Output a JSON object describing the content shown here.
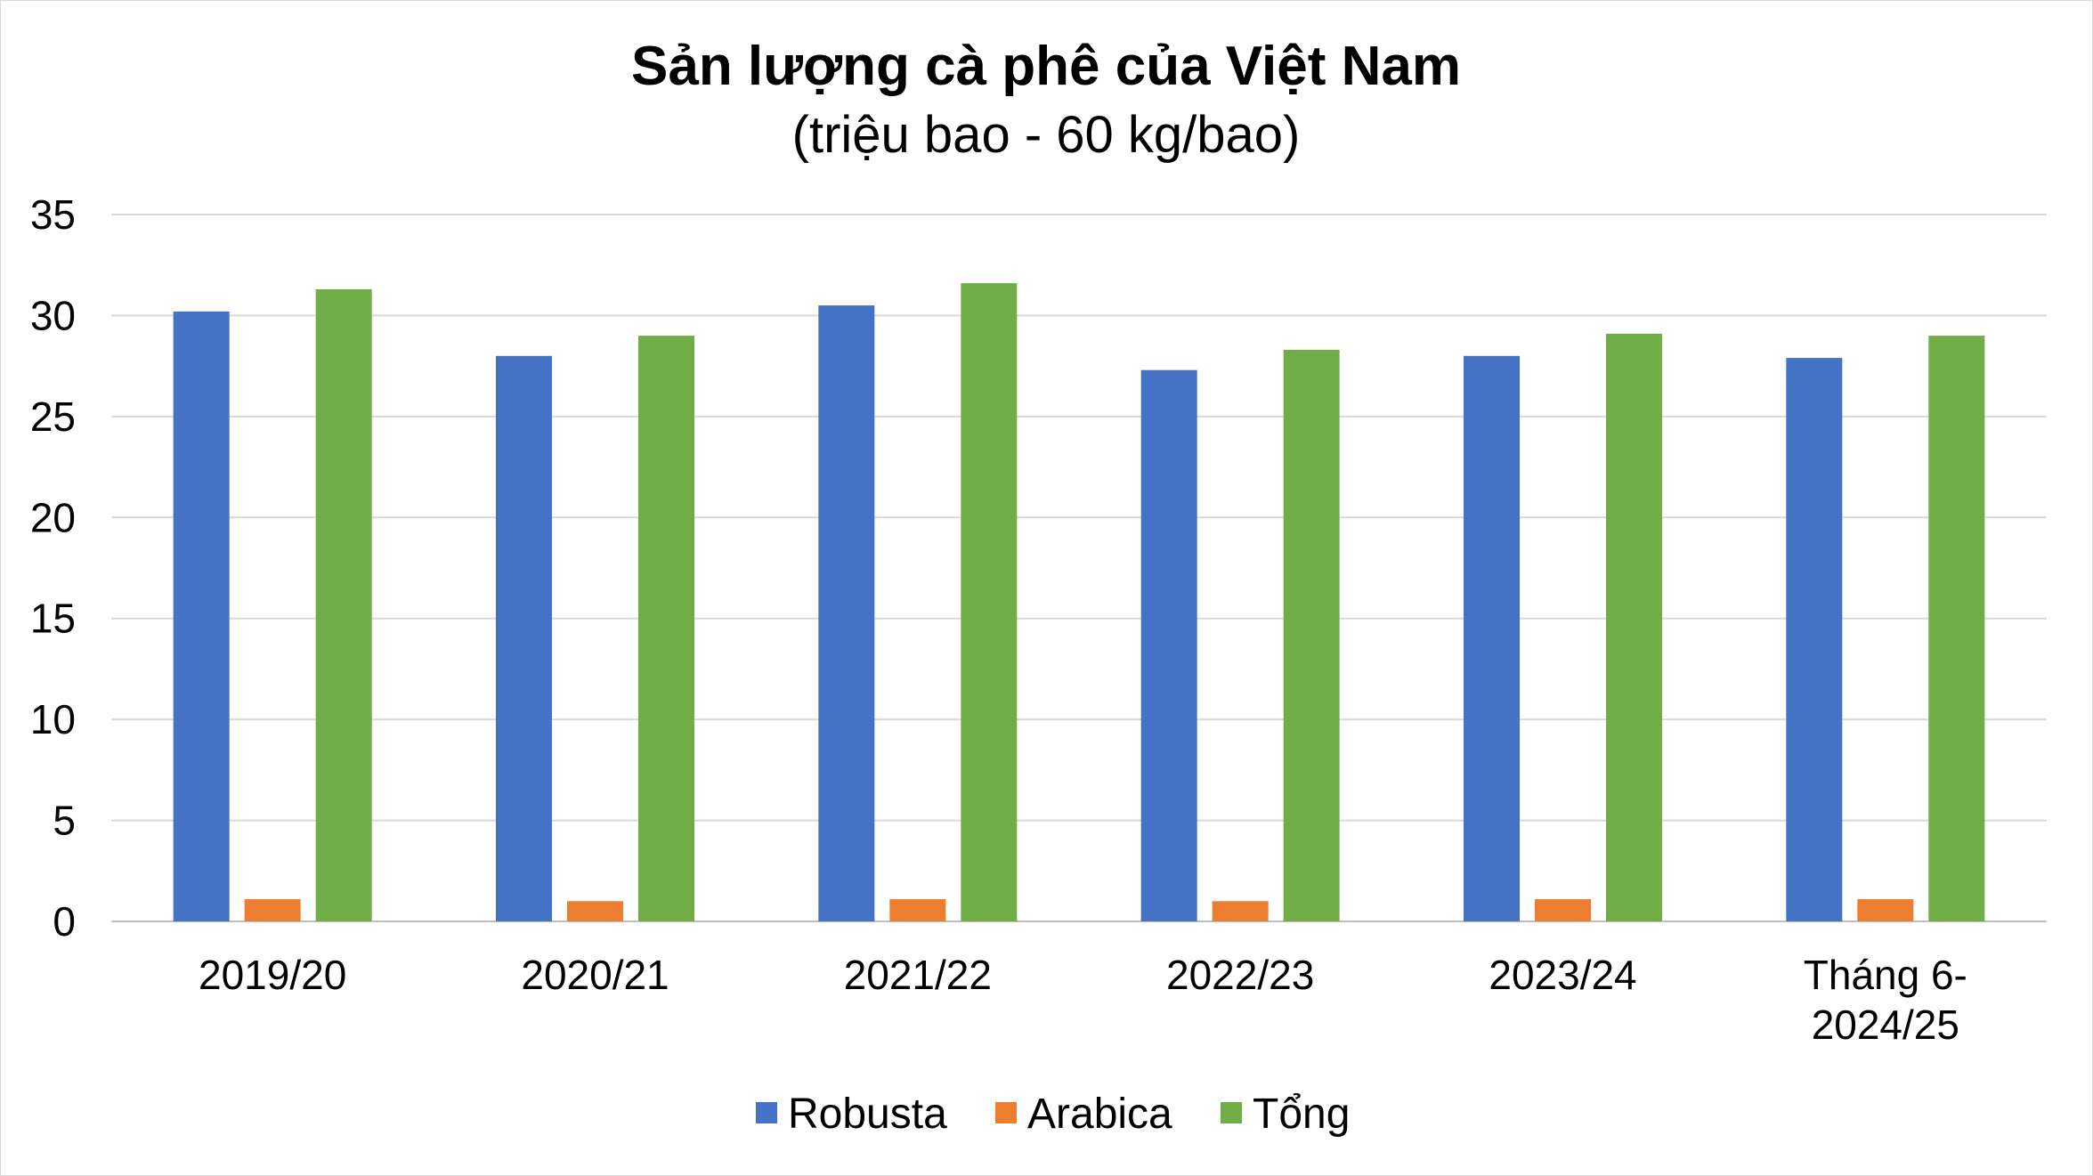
{
  "chart_data": {
    "type": "bar",
    "title": "Sản lượng cà phê của Việt Nam",
    "subtitle": "(triệu bao - 60 kg/bao)",
    "xlabel": "",
    "ylabel": "",
    "ylim": [
      0,
      35
    ],
    "yticks": [
      0,
      5,
      10,
      15,
      20,
      25,
      30,
      35
    ],
    "grid": true,
    "legend_position": "bottom",
    "categories": [
      [
        "2019/20"
      ],
      [
        "2020/21"
      ],
      [
        "2021/22"
      ],
      [
        "2022/23"
      ],
      [
        "2023/24"
      ],
      [
        "Tháng 6-",
        "2024/25"
      ]
    ],
    "series": [
      {
        "name": "Robusta",
        "color": "#4472c4",
        "values": [
          30.2,
          28.0,
          30.5,
          27.3,
          28.0,
          27.9
        ]
      },
      {
        "name": "Arabica",
        "color": "#ed7d31",
        "values": [
          1.1,
          1.0,
          1.1,
          1.0,
          1.1,
          1.1
        ]
      },
      {
        "name": "Tổng",
        "color": "#70ad47",
        "values": [
          31.3,
          29.0,
          31.6,
          28.3,
          29.1,
          29.0
        ]
      }
    ]
  }
}
